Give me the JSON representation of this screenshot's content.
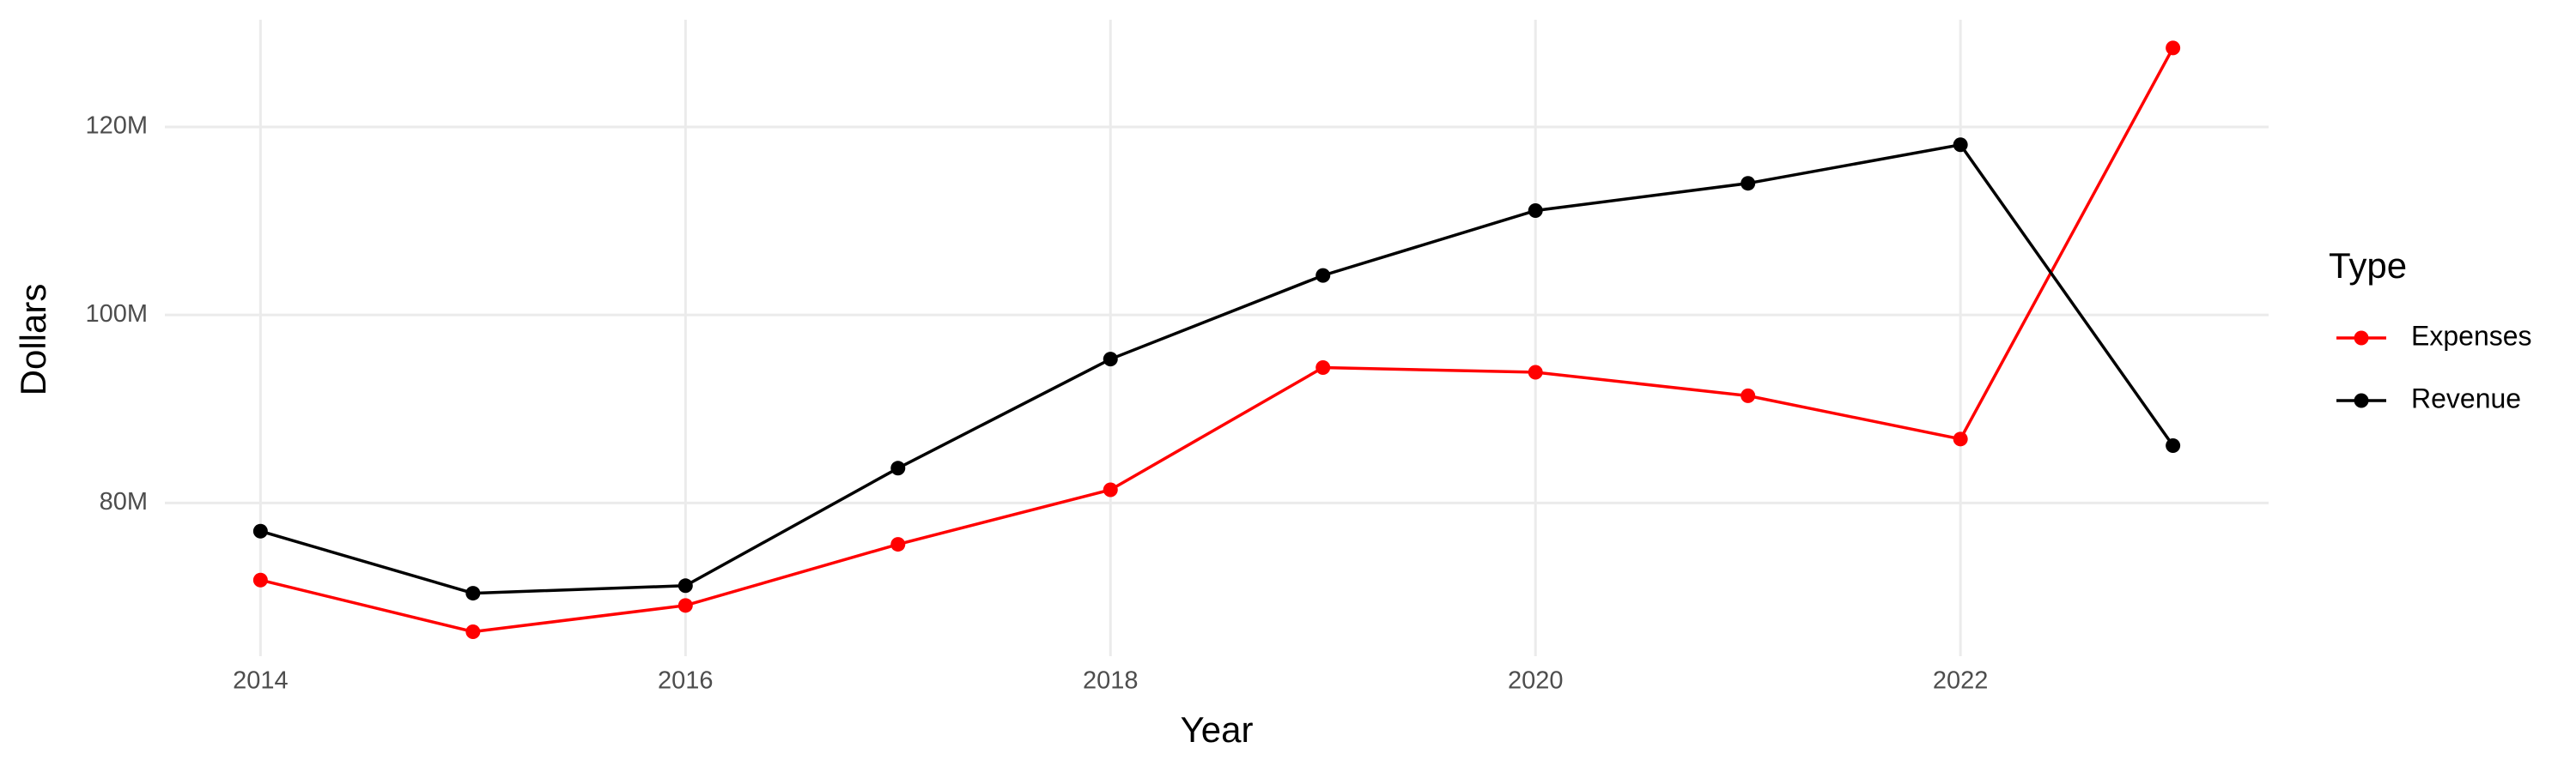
{
  "chart_data": {
    "type": "line",
    "x_label": "Year",
    "y_label": "Dollars",
    "legend_title": "Type",
    "legend": "right",
    "grid": true,
    "x": [
      2014,
      2015,
      2016,
      2017,
      2018,
      2019,
      2020,
      2021,
      2022,
      2023
    ],
    "series": [
      {
        "name": "Expenses",
        "color": "#ff0000",
        "values": [
          71800000,
          66300000,
          69100000,
          75600000,
          81400000,
          94400000,
          93900000,
          91400000,
          86800000,
          128400000
        ]
      },
      {
        "name": "Revenue",
        "color": "#000000",
        "values": [
          77000000,
          70400000,
          71200000,
          83700000,
          95300000,
          104200000,
          111100000,
          114000000,
          118100000,
          86100000
        ]
      }
    ],
    "xlim": [
      2013.55,
      2023.45
    ],
    "xticks": [
      2014,
      2016,
      2018,
      2020,
      2022
    ],
    "ylim": [
      63700000,
      131400000
    ],
    "yticks": [
      {
        "value": 80000000,
        "label": "80M"
      },
      {
        "value": 100000000,
        "label": "100M"
      },
      {
        "value": 120000000,
        "label": "120M"
      }
    ]
  }
}
